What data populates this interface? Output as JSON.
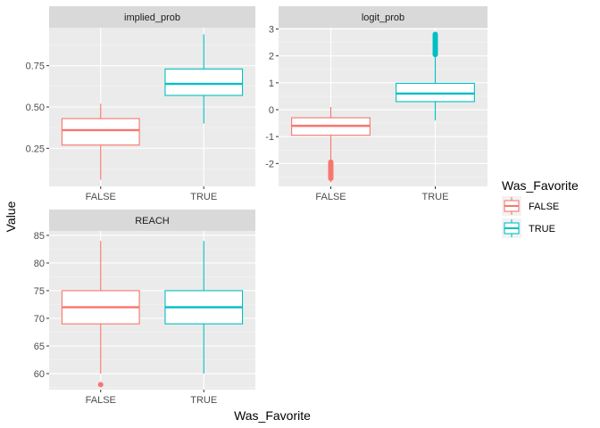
{
  "chart_data": {
    "type": "boxplot",
    "xlabel": "Was_Favorite",
    "ylabel": "Value",
    "legend": {
      "title": "Was_Favorite",
      "placement": "right",
      "entries": [
        {
          "label": "FALSE",
          "color": "#F8766D"
        },
        {
          "label": "TRUE",
          "color": "#00BFC4"
        }
      ]
    },
    "panels": [
      {
        "name": "implied_prob",
        "categories": [
          "FALSE",
          "TRUE"
        ],
        "ylim": [
          0.02,
          0.98
        ],
        "yticks": [
          0.25,
          0.5,
          0.75
        ],
        "ytick_labels": [
          "0.25",
          "0.50",
          "0.75"
        ],
        "boxes": [
          {
            "category": "FALSE",
            "color": "#F8766D",
            "whisker_low": 0.06,
            "q1": 0.27,
            "median": 0.36,
            "q3": 0.43,
            "whisker_high": 0.52,
            "outliers": []
          },
          {
            "category": "TRUE",
            "color": "#00BFC4",
            "whisker_low": 0.4,
            "q1": 0.57,
            "median": 0.64,
            "q3": 0.73,
            "whisker_high": 0.94,
            "outliers": []
          }
        ]
      },
      {
        "name": "logit_prob",
        "categories": [
          "FALSE",
          "TRUE"
        ],
        "ylim": [
          -2.85,
          3.05
        ],
        "yticks": [
          -2,
          -1,
          0,
          1,
          2,
          3
        ],
        "ytick_labels": [
          "-2",
          "-1",
          "0",
          "1",
          "2",
          "3"
        ],
        "boxes": [
          {
            "category": "FALSE",
            "color": "#F8766D",
            "whisker_low": -2.7,
            "q1": -0.95,
            "median": -0.6,
            "q3": -0.3,
            "whisker_high": 0.1,
            "outliers": [
              -1.95,
              -2.0,
              -2.05,
              -2.1,
              -2.15,
              -2.2,
              -2.25,
              -2.3,
              -2.35,
              -2.4,
              -2.45,
              -2.5,
              -2.55
            ]
          },
          {
            "category": "TRUE",
            "color": "#00BFC4",
            "whisker_low": -0.4,
            "q1": 0.3,
            "median": 0.6,
            "q3": 0.98,
            "whisker_high": 2.0,
            "outliers": [
              2.05,
              2.1,
              2.15,
              2.2,
              2.25,
              2.3,
              2.35,
              2.4,
              2.45,
              2.5,
              2.55,
              2.6,
              2.65,
              2.7,
              2.75,
              2.8
            ]
          }
        ]
      },
      {
        "name": "REACH",
        "categories": [
          "FALSE",
          "TRUE"
        ],
        "ylim": [
          57.1,
          85.8
        ],
        "yticks": [
          60,
          65,
          70,
          75,
          80,
          85
        ],
        "ytick_labels": [
          "60",
          "65",
          "70",
          "75",
          "80",
          "85"
        ],
        "boxes": [
          {
            "category": "FALSE",
            "color": "#F8766D",
            "whisker_low": 60,
            "q1": 69,
            "median": 72,
            "q3": 75,
            "whisker_high": 84,
            "outliers": [
              58
            ]
          },
          {
            "category": "TRUE",
            "color": "#00BFC4",
            "whisker_low": 60,
            "q1": 69,
            "median": 72,
            "q3": 75,
            "whisker_high": 84,
            "outliers": []
          }
        ]
      }
    ]
  }
}
